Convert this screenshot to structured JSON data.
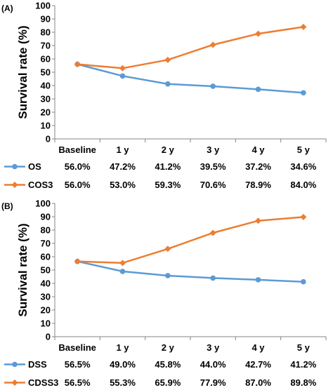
{
  "chart_data": [
    {
      "panel": "(A)",
      "type": "line",
      "ylabel": "Survival rate (%)",
      "ylim": [
        0,
        100
      ],
      "yticks": [
        0,
        10,
        20,
        30,
        40,
        50,
        60,
        70,
        80,
        90,
        100
      ],
      "categories": [
        "Baseline",
        "1 y",
        "2 y",
        "3 y",
        "4 y",
        "5 y"
      ],
      "series": [
        {
          "name": "OS",
          "color": "#5B9BD5",
          "marker": "circle",
          "values": [
            56.0,
            47.2,
            41.2,
            39.5,
            37.2,
            34.6
          ],
          "labels": [
            "56.0%",
            "47.2%",
            "41.2%",
            "39.5%",
            "37.2%",
            "34.6%"
          ]
        },
        {
          "name": "COS3",
          "color": "#ED7D31",
          "marker": "diamond",
          "values": [
            56.0,
            53.0,
            59.3,
            70.6,
            78.9,
            84.0
          ],
          "labels": [
            "56.0%",
            "53.0%",
            "59.3%",
            "70.6%",
            "78.9%",
            "84.0%"
          ]
        }
      ],
      "grid": false
    },
    {
      "panel": "(B)",
      "type": "line",
      "ylabel": "Survival rate (%)",
      "ylim": [
        0,
        100
      ],
      "yticks": [
        0,
        10,
        20,
        30,
        40,
        50,
        60,
        70,
        80,
        90,
        100
      ],
      "categories": [
        "Baseline",
        "1 y",
        "2 y",
        "3 y",
        "4 y",
        "5 y"
      ],
      "series": [
        {
          "name": "DSS",
          "color": "#5B9BD5",
          "marker": "circle",
          "values": [
            56.5,
            49.0,
            45.8,
            44.0,
            42.7,
            41.2
          ],
          "labels": [
            "56.5%",
            "49.0%",
            "45.8%",
            "44.0%",
            "42.7%",
            "41.2%"
          ]
        },
        {
          "name": "CDSS3",
          "color": "#ED7D31",
          "marker": "diamond",
          "values": [
            56.5,
            55.3,
            65.9,
            77.9,
            87.0,
            89.8
          ],
          "labels": [
            "56.5%",
            "55.3%",
            "65.9%",
            "77.9%",
            "87.0%",
            "89.8%"
          ]
        }
      ],
      "grid": false
    }
  ]
}
